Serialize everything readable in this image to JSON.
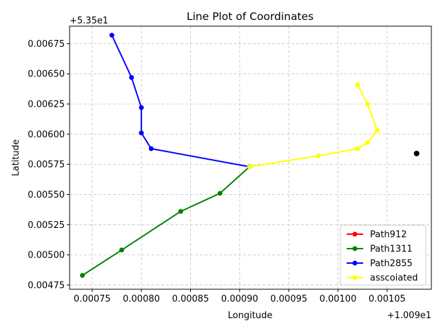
{
  "chart_data": {
    "type": "line",
    "title": "Line Plot of Coordinates",
    "xlabel": "Longitude",
    "ylabel": "Latitude",
    "x_offset_label": "+1.009e1",
    "y_offset_label": "+5.35e1",
    "x_offset": 10.09,
    "y_offset": 53.5,
    "xlim": [
      0.000727,
      0.001095
    ],
    "ylim": [
      0.004715,
      0.006895
    ],
    "x_ticks": [
      0.00075,
      0.0008,
      0.00085,
      0.0009,
      0.00095,
      0.001,
      0.00105
    ],
    "x_tick_labels": [
      "0.00075",
      "0.00080",
      "0.00085",
      "0.00090",
      "0.00095",
      "0.00100",
      "0.00105"
    ],
    "y_ticks": [
      0.00475,
      0.005,
      0.00525,
      0.0055,
      0.00575,
      0.006,
      0.00625,
      0.0065,
      0.00675
    ],
    "y_tick_labels": [
      "0.00475",
      "0.00500",
      "0.00525",
      "0.00550",
      "0.00575",
      "0.00600",
      "0.00625",
      "0.00650",
      "0.00675"
    ],
    "grid": true,
    "legend_position": "lower-right",
    "series": [
      {
        "name": "Path912",
        "color": "#ff0000",
        "x": [],
        "y": []
      },
      {
        "name": "Path1311",
        "color": "#008000",
        "x": [
          0.00074,
          0.00078,
          0.00084,
          0.00088,
          0.00091
        ],
        "y": [
          0.00483,
          0.00504,
          0.00536,
          0.00551,
          0.00573
        ]
      },
      {
        "name": "Path2855",
        "color": "#0000ff",
        "x": [
          0.00077,
          0.00079,
          0.0008,
          0.0008,
          0.00081,
          0.00091
        ],
        "y": [
          0.00682,
          0.00647,
          0.00622,
          0.00601,
          0.00588,
          0.00573
        ]
      },
      {
        "name": "asscoiated",
        "color": "#ffff00",
        "x": [
          0.00091,
          0.00098,
          0.00102,
          0.00103,
          0.00104,
          0.00103,
          0.00102
        ],
        "y": [
          0.00573,
          0.00582,
          0.00588,
          0.00593,
          0.00603,
          0.00625,
          0.00641
        ]
      }
    ],
    "extra_points": [
      {
        "x": 0.00108,
        "y": 0.00584,
        "color": "#000000"
      }
    ]
  }
}
